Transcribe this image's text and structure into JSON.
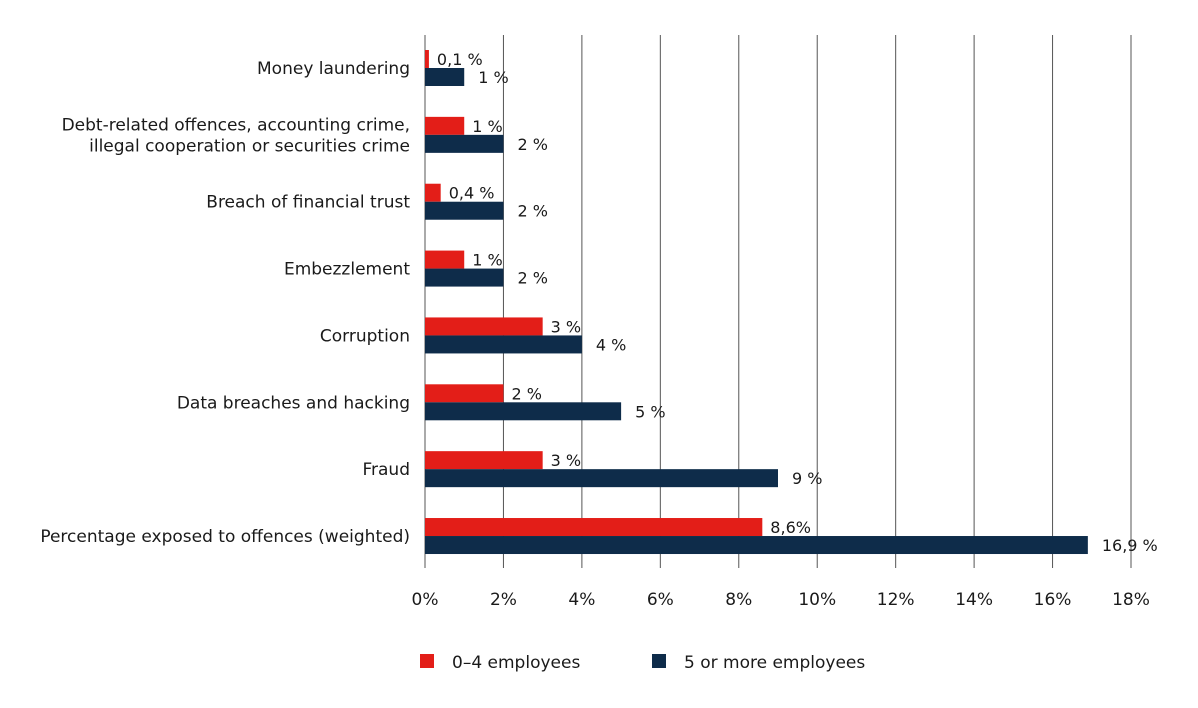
{
  "chart_data": {
    "type": "bar",
    "orientation": "horizontal",
    "categories": [
      [
        "Money laundering"
      ],
      [
        "Debt-related offences, accounting crime,",
        "illegal cooperation or securities crime"
      ],
      [
        "Breach of financial trust"
      ],
      [
        "Embezzlement"
      ],
      [
        "Corruption"
      ],
      [
        "Data breaches and hacking"
      ],
      [
        "Fraud"
      ],
      [
        "Percentage exposed to offences (weighted)"
      ]
    ],
    "series": [
      {
        "name": "0–4 employees",
        "color": "#e31e18",
        "values": [
          0.1,
          1,
          0.4,
          1,
          3,
          2,
          3,
          8.6
        ],
        "labels": [
          "0,1 %",
          "1 %",
          "0,4 %",
          "1 %",
          "3 %",
          "2 %",
          "3 %",
          "8,6%"
        ]
      },
      {
        "name": "5 or more employees",
        "color": "#0e2c4a",
        "values": [
          1,
          2,
          2,
          2,
          4,
          5,
          9,
          16.9
        ],
        "labels": [
          "1 %",
          "2 %",
          "2 %",
          "2 %",
          "4 %",
          "5 %",
          "9 %",
          "16,9 %"
        ]
      }
    ],
    "xlim": [
      0,
      18
    ],
    "xticks": [
      "0%",
      "2%",
      "4%",
      "6%",
      "8%",
      "10%",
      "12%",
      "14%",
      "16%",
      "18%"
    ],
    "grid": "vertical",
    "legend": "bottom"
  }
}
